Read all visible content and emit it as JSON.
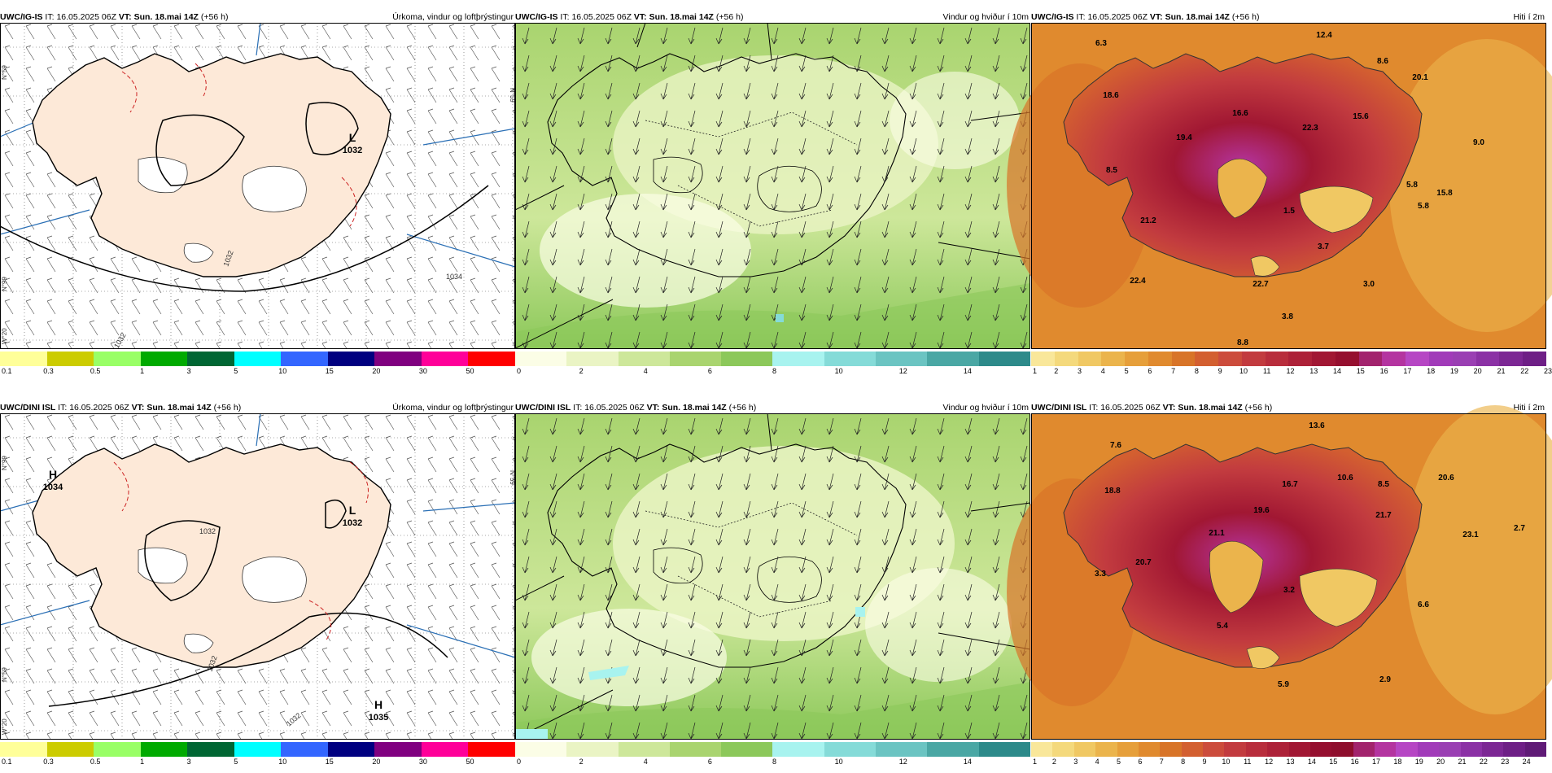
{
  "rows": [
    {
      "model": "UWC/IG-IS",
      "it_label": "IT:",
      "it_value": "16.05.2025 06Z",
      "vt_label": "VT:",
      "vt_value": "Sun. 18.mai 14Z",
      "lead": "(+56 h)",
      "panels": [
        {
          "title": "Úrkoma, vindur og loftþrýstingur",
          "pressure_centers": [
            {
              "letter": "L",
              "value": "1032"
            }
          ],
          "isobar_labels": [
            "1034",
            "1032",
            "1032"
          ],
          "lat_labels": [
            "N°59",
            "N°99",
            "W°20"
          ]
        },
        {
          "title": "Vindur og hviður í 10m"
        },
        {
          "title": "Hiti í 2m",
          "values": [
            "12.4",
            "6.3",
            "8.6",
            "18.6",
            "20.1",
            "16.6",
            "15.6",
            "19.4",
            "22.3",
            "9.0",
            "8.5",
            "5.8",
            "15.8",
            "21.2",
            "1.5",
            "5.8",
            "3.7",
            "22.4",
            "22.7",
            "3.0",
            "3.8",
            "8.8"
          ]
        }
      ]
    },
    {
      "model": "UWC/DINI ISL",
      "it_label": "IT:",
      "it_value": "16.05.2025 06Z",
      "vt_label": "VT:",
      "vt_value": "Sun. 18.mai 14Z",
      "lead": "(+56 h)",
      "panels": [
        {
          "title": "Úrkoma, vindur og loftþrýstingur",
          "pressure_centers": [
            {
              "letter": "H",
              "value": "1034"
            },
            {
              "letter": "L",
              "value": "1032"
            },
            {
              "letter": "H",
              "value": "1035"
            }
          ],
          "isobar_labels": [
            "1032",
            "1032",
            "1032"
          ],
          "lat_labels": [
            "N°99",
            "N°59",
            "W°20"
          ]
        },
        {
          "title": "Vindur og hviður í 10m"
        },
        {
          "title": "Hiti í 2m",
          "values": [
            "13.6",
            "7.6",
            "10.6",
            "18.8",
            "16.7",
            "8.5",
            "20.6",
            "19.6",
            "21.7",
            "2.7",
            "21.1",
            "23.1",
            "20.7",
            "3.3",
            "3.2",
            "6.6",
            "5.4",
            "2.9",
            "5.9"
          ]
        }
      ]
    }
  ],
  "colorbars": {
    "precip": {
      "colors": [
        "#ffff99",
        "#cccc00",
        "#99ff66",
        "#00aa00",
        "#006633",
        "#00ffff",
        "#3366ff",
        "#000080",
        "#800080",
        "#ff0099",
        "#ff0000"
      ],
      "ticks": [
        "0.1",
        "0.3",
        "0.5",
        "1",
        "3",
        "5",
        "10",
        "15",
        "20",
        "30",
        "50"
      ]
    },
    "wind": {
      "colors": [
        "#fbfde6",
        "#eaf4c4",
        "#cde79a",
        "#a9d46f",
        "#8cc85a",
        "#a8f3ef",
        "#85dbd8",
        "#6bc4c2",
        "#4aa7a4",
        "#2d8a8a"
      ],
      "ticks": [
        "0",
        "2",
        "4",
        "6",
        "8",
        "10",
        "12",
        "14"
      ]
    },
    "temp_top": {
      "colors": [
        "#f9e79a",
        "#f4d97c",
        "#f0c863",
        "#ebb44c",
        "#e69f3a",
        "#e08a2e",
        "#d87428",
        "#d35f30",
        "#cc4c3c",
        "#c23b3f",
        "#b82d3c",
        "#ad2138",
        "#a11733",
        "#950f2f",
        "#a2236d",
        "#b434a0",
        "#b646c4",
        "#a13bb9",
        "#9a3fb3",
        "#8b31a5",
        "#7c2794",
        "#6e1f86"
      ],
      "ticks": [
        "1",
        "2",
        "3",
        "4",
        "5",
        "6",
        "7",
        "8",
        "9",
        "10",
        "11",
        "12",
        "13",
        "14",
        "15",
        "16",
        "17",
        "18",
        "19",
        "20",
        "21",
        "22",
        "23"
      ]
    },
    "temp_bottom": {
      "colors": [
        "#f9e79a",
        "#f4d97c",
        "#f0c863",
        "#ebb44c",
        "#e69f3a",
        "#e08a2e",
        "#d87428",
        "#d35f30",
        "#cc4c3c",
        "#c23b3f",
        "#b82d3c",
        "#ad2138",
        "#a11733",
        "#950f2f",
        "#8e0e2d",
        "#a2236d",
        "#b434a0",
        "#b646c4",
        "#a13bb9",
        "#9a3fb3",
        "#8b31a5",
        "#7c2794",
        "#6e1f86",
        "#5f1a76"
      ],
      "ticks": [
        "1",
        "2",
        "3",
        "4",
        "5",
        "6",
        "7",
        "8",
        "9",
        "10",
        "11",
        "12",
        "13",
        "14",
        "15",
        "16",
        "17",
        "18",
        "19",
        "20",
        "21",
        "22",
        "23",
        "24"
      ]
    }
  }
}
